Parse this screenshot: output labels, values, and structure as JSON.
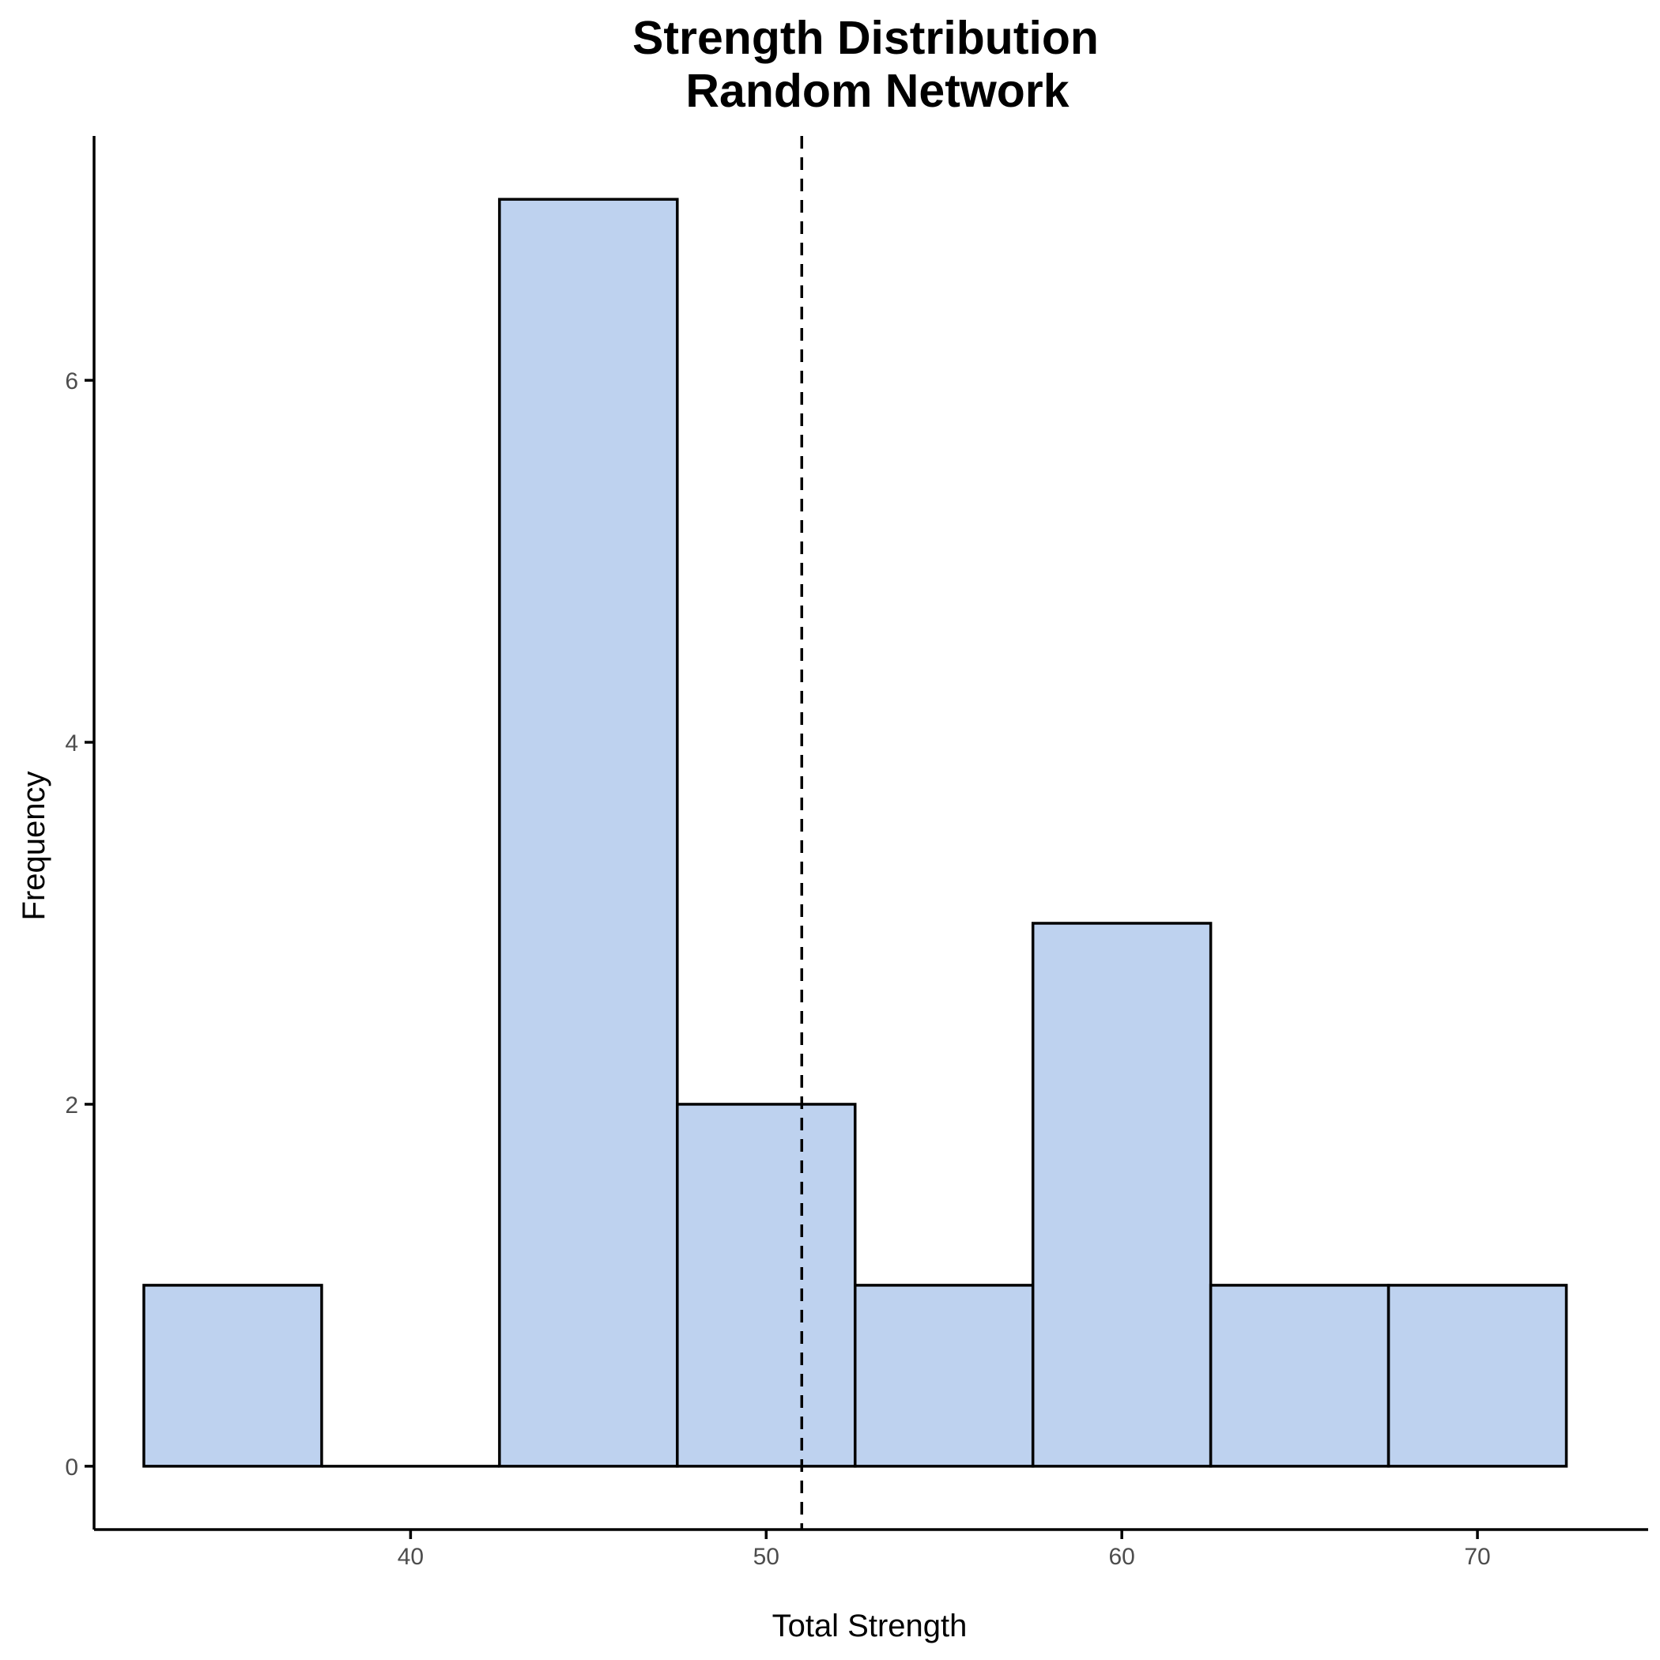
{
  "chart_data": {
    "type": "bar",
    "title_lines": [
      "Strength Distribution",
      "Random Network"
    ],
    "xlabel": "Total Strength",
    "ylabel": "Frequency",
    "bins": [
      {
        "x0": 32.5,
        "x1": 37.5,
        "count": 1
      },
      {
        "x0": 37.5,
        "x1": 42.5,
        "count": 0
      },
      {
        "x0": 42.5,
        "x1": 47.5,
        "count": 7
      },
      {
        "x0": 47.5,
        "x1": 52.5,
        "count": 2
      },
      {
        "x0": 52.5,
        "x1": 57.5,
        "count": 1
      },
      {
        "x0": 57.5,
        "x1": 62.5,
        "count": 3
      },
      {
        "x0": 62.5,
        "x1": 67.5,
        "count": 1
      },
      {
        "x0": 67.5,
        "x1": 72.5,
        "count": 1
      }
    ],
    "xlim": [
      31.1,
      74.8
    ],
    "ylim": [
      -0.35,
      7.35
    ],
    "x_ticks": [
      40,
      50,
      60,
      70
    ],
    "y_ticks": [
      0,
      2,
      4,
      6
    ],
    "mean_line": 51.0,
    "bar_fill": "#bed2ef",
    "bar_edge": "#000000",
    "grid": false,
    "legend": "none"
  }
}
